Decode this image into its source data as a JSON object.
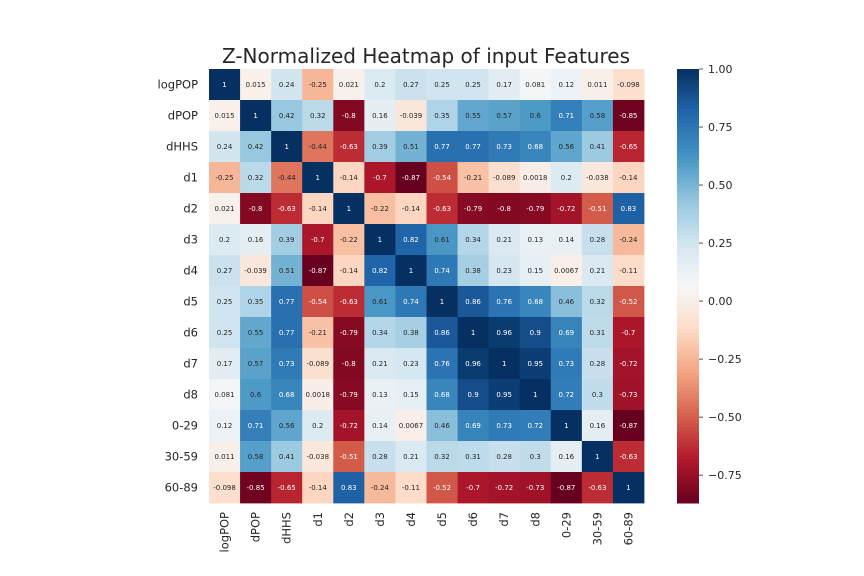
{
  "chart_data": {
    "type": "heatmap",
    "title": "Z-Normalized Heatmap of input Features",
    "xlabel": "",
    "ylabel": "",
    "row_labels": [
      "logPOP",
      "dPOP",
      "dHHS",
      "d1",
      "d2",
      "d3",
      "d4",
      "d5",
      "d6",
      "d7",
      "d8",
      "0-29",
      "30-59",
      "60-89"
    ],
    "col_labels": [
      "logPOP",
      "dPOP",
      "dHHS",
      "d1",
      "d2",
      "d3",
      "d4",
      "d5",
      "d6",
      "d7",
      "d8",
      "0-29",
      "30-59",
      "60-89"
    ],
    "values": [
      [
        1,
        0.015,
        0.24,
        -0.25,
        0.021,
        0.2,
        0.27,
        0.25,
        0.25,
        0.17,
        0.081,
        0.12,
        0.011,
        -0.098
      ],
      [
        0.015,
        1,
        0.42,
        0.32,
        -0.8,
        0.16,
        -0.039,
        0.35,
        0.55,
        0.57,
        0.6,
        0.71,
        0.58,
        -0.85
      ],
      [
        0.24,
        0.42,
        1,
        -0.44,
        -0.63,
        0.39,
        0.51,
        0.77,
        0.77,
        0.73,
        0.68,
        0.56,
        0.41,
        -0.65
      ],
      [
        -0.25,
        0.32,
        -0.44,
        1,
        -0.14,
        -0.7,
        -0.87,
        -0.54,
        -0.21,
        -0.089,
        0.0018,
        0.2,
        -0.038,
        -0.14
      ],
      [
        0.021,
        -0.8,
        -0.63,
        -0.14,
        1,
        -0.22,
        -0.14,
        -0.63,
        -0.79,
        -0.8,
        -0.79,
        -0.72,
        -0.51,
        0.83
      ],
      [
        0.2,
        0.16,
        0.39,
        -0.7,
        -0.22,
        1,
        0.82,
        0.61,
        0.34,
        0.21,
        0.13,
        0.14,
        0.28,
        -0.24
      ],
      [
        0.27,
        -0.039,
        0.51,
        -0.87,
        -0.14,
        0.82,
        1,
        0.74,
        0.38,
        0.23,
        0.15,
        0.0067,
        0.21,
        -0.11
      ],
      [
        0.25,
        0.35,
        0.77,
        -0.54,
        -0.63,
        0.61,
        0.74,
        1,
        0.86,
        0.76,
        0.68,
        0.46,
        0.32,
        -0.52
      ],
      [
        0.25,
        0.55,
        0.77,
        -0.21,
        -0.79,
        0.34,
        0.38,
        0.86,
        1,
        0.96,
        0.9,
        0.69,
        0.31,
        -0.7
      ],
      [
        0.17,
        0.57,
        0.73,
        -0.089,
        -0.8,
        0.21,
        0.23,
        0.76,
        0.96,
        1,
        0.95,
        0.73,
        0.28,
        -0.72
      ],
      [
        0.081,
        0.6,
        0.68,
        0.0018,
        -0.79,
        0.13,
        0.15,
        0.68,
        0.9,
        0.95,
        1,
        0.72,
        0.3,
        -0.73
      ],
      [
        0.12,
        0.71,
        0.56,
        0.2,
        -0.72,
        0.14,
        0.0067,
        0.46,
        0.69,
        0.73,
        0.72,
        1,
        0.16,
        -0.87
      ],
      [
        0.011,
        0.58,
        0.41,
        -0.038,
        -0.51,
        0.28,
        0.21,
        0.32,
        0.31,
        0.28,
        0.3,
        0.16,
        1,
        -0.63
      ],
      [
        -0.098,
        -0.85,
        -0.65,
        -0.14,
        0.83,
        -0.24,
        -0.11,
        -0.52,
        -0.7,
        -0.72,
        -0.73,
        -0.87,
        -0.63,
        1
      ]
    ],
    "cell_labels": [
      [
        "1",
        "0.015",
        "0.24",
        "-0.25",
        "0.021",
        "0.2",
        "0.27",
        "0.25",
        "0.25",
        "0.17",
        "0.081",
        "0.12",
        "0.011",
        "-0.098"
      ],
      [
        "0.015",
        "1",
        "0.42",
        "0.32",
        "-0.8",
        "0.16",
        "-0.039",
        "0.35",
        "0.55",
        "0.57",
        "0.6",
        "0.71",
        "0.58",
        "-0.85"
      ],
      [
        "0.24",
        "0.42",
        "1",
        "-0.44",
        "-0.63",
        "0.39",
        "0.51",
        "0.77",
        "0.77",
        "0.73",
        "0.68",
        "0.56",
        "0.41",
        "-0.65"
      ],
      [
        "-0.25",
        "0.32",
        "-0.44",
        "1",
        "-0.14",
        "-0.7",
        "-0.87",
        "-0.54",
        "-0.21",
        "-0.089",
        "0.0018",
        "0.2",
        "-0.038",
        "-0.14"
      ],
      [
        "0.021",
        "-0.8",
        "-0.63",
        "-0.14",
        "1",
        "-0.22",
        "-0.14",
        "-0.63",
        "-0.79",
        "-0.8",
        "-0.79",
        "-0.72",
        "-0.51",
        "0.83"
      ],
      [
        "0.2",
        "0.16",
        "0.39",
        "-0.7",
        "-0.22",
        "1",
        "0.82",
        "0.61",
        "0.34",
        "0.21",
        "0.13",
        "0.14",
        "0.28",
        "-0.24"
      ],
      [
        "0.27",
        "-0.039",
        "0.51",
        "-0.87",
        "-0.14",
        "0.82",
        "1",
        "0.74",
        "0.38",
        "0.23",
        "0.15",
        "0.0067",
        "0.21",
        "-0.11"
      ],
      [
        "0.25",
        "0.35",
        "0.77",
        "-0.54",
        "-0.63",
        "0.61",
        "0.74",
        "1",
        "0.86",
        "0.76",
        "0.68",
        "0.46",
        "0.32",
        "-0.52"
      ],
      [
        "0.25",
        "0.55",
        "0.77",
        "-0.21",
        "-0.79",
        "0.34",
        "0.38",
        "0.86",
        "1",
        "0.96",
        "0.9",
        "0.69",
        "0.31",
        "-0.7"
      ],
      [
        "0.17",
        "0.57",
        "0.73",
        "-0.089",
        "-0.8",
        "0.21",
        "0.23",
        "0.76",
        "0.96",
        "1",
        "0.95",
        "0.73",
        "0.28",
        "-0.72"
      ],
      [
        "0.081",
        "0.6",
        "0.68",
        "0.0018",
        "-0.79",
        "0.13",
        "0.15",
        "0.68",
        "0.9",
        "0.95",
        "1",
        "0.72",
        "0.3",
        "-0.73"
      ],
      [
        "0.12",
        "0.71",
        "0.56",
        "0.2",
        "-0.72",
        "0.14",
        "0.0067",
        "0.46",
        "0.69",
        "0.73",
        "0.72",
        "1",
        "0.16",
        "-0.87"
      ],
      [
        "0.011",
        "0.58",
        "0.41",
        "-0.038",
        "-0.51",
        "0.28",
        "0.21",
        "0.32",
        "0.31",
        "0.28",
        "0.3",
        "0.16",
        "1",
        "-0.63"
      ],
      [
        "-0.098",
        "-0.85",
        "-0.65",
        "-0.14",
        "0.83",
        "-0.24",
        "-0.11",
        "-0.52",
        "-0.7",
        "-0.72",
        "-0.73",
        "-0.87",
        "-0.63",
        "1"
      ]
    ],
    "colormap": "RdBu",
    "colormap_stops": [
      "#67001f",
      "#b2182b",
      "#d6604d",
      "#f4a582",
      "#fddbc7",
      "#f7f7f7",
      "#d1e5f0",
      "#92c5de",
      "#4393c3",
      "#2166ac",
      "#053061"
    ],
    "vmin": -0.87,
    "vmax": 1,
    "colorbar_ticks": [
      1.0,
      0.75,
      0.5,
      0.25,
      0.0,
      -0.25,
      -0.5,
      -0.75
    ],
    "colorbar_tick_labels": [
      "1.00",
      "0.75",
      "0.50",
      "0.25",
      "0.00",
      "−0.25",
      "−0.50",
      "−0.75"
    ],
    "grid": false,
    "colorbar_position": "right"
  }
}
